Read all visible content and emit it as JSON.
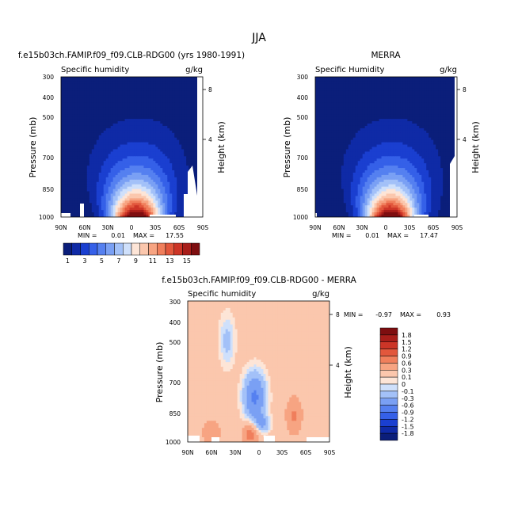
{
  "figure": {
    "title": "JJA"
  },
  "chart_data": [
    {
      "type": "heatmap",
      "title": "f.e15b03ch.FAMIP.f09_f09.CLB-RDG00 (yrs 1980-1991)",
      "subtitle_left": "Specific humidity",
      "units": "g/kg",
      "ylabel": "Pressure (mb)",
      "ylabel_right": "Height (km)",
      "x_ticks": [
        "90N",
        "60N",
        "30N",
        "0",
        "30S",
        "60S",
        "90S"
      ],
      "y_ticks": [
        "300",
        "400",
        "500",
        "700",
        "850",
        "1000"
      ],
      "y2_ticks": [
        "8",
        "4"
      ],
      "min_label": "MIN =",
      "min_value": "0.01",
      "max_label": "MAX =",
      "max_value": "17.55",
      "peak_lat": -5,
      "field_max": 17.55
    },
    {
      "type": "heatmap",
      "title": "MERRA",
      "subtitle_left": "Specific Humidity",
      "units": "g/kg",
      "ylabel": "Pressure (mb)",
      "ylabel_right": "Height (km)",
      "x_ticks": [
        "90N",
        "60N",
        "30N",
        "0",
        "30S",
        "60S",
        "90S"
      ],
      "y_ticks": [
        "300",
        "400",
        "500",
        "700",
        "850",
        "1000"
      ],
      "y2_ticks": [
        "8",
        "4"
      ],
      "min_label": "MIN =",
      "min_value": "0.01",
      "max_label": "MAX =",
      "max_value": "17.47",
      "peak_lat": -5,
      "field_max": 17.47
    },
    {
      "type": "heatmap",
      "title": "f.e15b03ch.FAMIP.f09_f09.CLB-RDG00 - MERRA",
      "subtitle_left": "Specific humidity",
      "units": "g/kg",
      "ylabel": "Pressure (mb)",
      "ylabel_right": "Height (km)",
      "x_ticks": [
        "90N",
        "60N",
        "30N",
        "0",
        "30S",
        "60S",
        "90S"
      ],
      "y_ticks": [
        "300",
        "400",
        "500",
        "700",
        "850",
        "1000"
      ],
      "y2_ticks": [
        "8",
        "4"
      ],
      "min_label": "MIN =",
      "min_value": "-0.97",
      "max_label": "MAX =",
      "max_value": "0.93",
      "field_min": -0.97,
      "field_max": 0.93
    }
  ],
  "colorbar_top": {
    "labels": [
      "1",
      "3",
      "5",
      "7",
      "9",
      "11",
      "13",
      "15"
    ],
    "colors": [
      "#0b1e7a",
      "#0f2aa6",
      "#1a3fd0",
      "#3560e8",
      "#5580f0",
      "#7aa0f4",
      "#a3c1f8",
      "#cfe0fb",
      "#fde5d7",
      "#fbc7ad",
      "#f7a482",
      "#f07f5c",
      "#e2573c",
      "#cc3527",
      "#a81e1a",
      "#7e0e10"
    ]
  },
  "colorbar_diff": {
    "labels": [
      "1.8",
      "1.5",
      "1.2",
      "0.9",
      "0.6",
      "0.3",
      "0.1",
      "0",
      "-0.1",
      "-0.3",
      "-0.6",
      "-0.9",
      "-1.2",
      "-1.5",
      "-1.8"
    ],
    "colors": [
      "#7e0e10",
      "#a81e1a",
      "#cc3527",
      "#e2573c",
      "#f07f5c",
      "#f7a482",
      "#fbc7ad",
      "#fde5d7",
      "#cfe0fb",
      "#a3c1f8",
      "#7aa0f4",
      "#5580f0",
      "#3560e8",
      "#1a3fd0",
      "#0f2aa6",
      "#0b1e7a"
    ]
  }
}
